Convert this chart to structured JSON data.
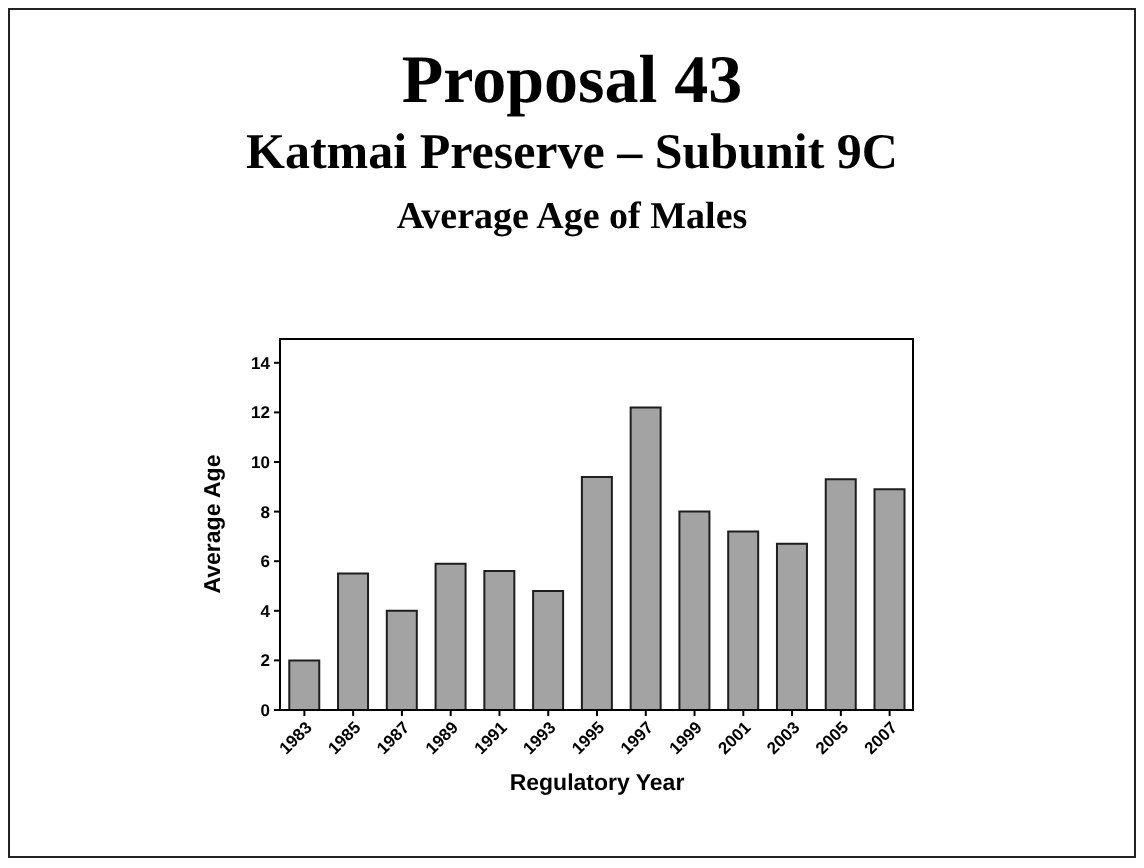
{
  "chart_data": {
    "type": "bar",
    "title": "Proposal 43",
    "subtitle": "Katmai Preserve – Subunit 9C\nAverage Age of Males",
    "xlabel": "Regulatory Year",
    "ylabel": "Average Age",
    "categories": [
      "1983",
      "1985",
      "1987",
      "1989",
      "1991",
      "1993",
      "1995",
      "1997",
      "1999",
      "2001",
      "2003",
      "2005",
      "2007"
    ],
    "values": [
      2.0,
      5.5,
      4.0,
      5.9,
      5.6,
      4.8,
      9.4,
      12.2,
      8.0,
      7.2,
      6.7,
      9.3,
      8.9
    ],
    "color": "#a3a3a3",
    "ylim": [
      0,
      15
    ],
    "yticks": [
      0,
      2,
      4,
      6,
      8,
      10,
      12,
      14
    ],
    "grid": false
  }
}
